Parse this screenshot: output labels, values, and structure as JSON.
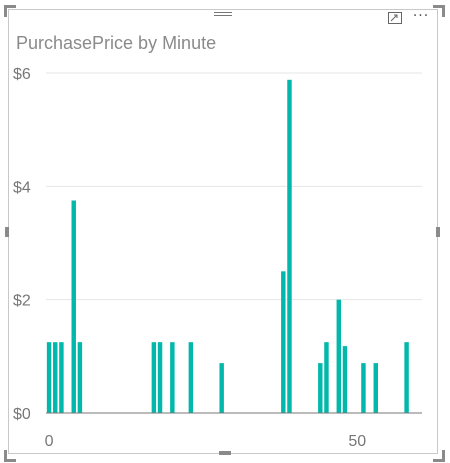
{
  "visual": {
    "title": "PurchasePrice by Minute",
    "icons": {
      "drag": "drag-handle-icon",
      "focus": "focus-mode-icon",
      "more": "more-options-icon"
    },
    "more_label": "···"
  },
  "chart_data": {
    "type": "bar",
    "title": "PurchasePrice by Minute",
    "xlabel": "",
    "ylabel": "",
    "x": [
      0,
      1,
      2,
      4,
      5,
      17,
      18,
      20,
      23,
      28,
      38,
      39,
      44,
      45,
      47,
      48,
      51,
      53,
      58
    ],
    "values": [
      1.25,
      1.25,
      1.25,
      3.75,
      1.25,
      1.25,
      1.25,
      1.25,
      1.25,
      0.88,
      2.5,
      5.88,
      0.88,
      1.25,
      2.0,
      1.18,
      0.88,
      0.88,
      1.25
    ],
    "xlim": [
      -0.5,
      60.5
    ],
    "ylim": [
      0,
      6.5
    ],
    "x_ticks": [
      0,
      50
    ],
    "x_tick_labels": [
      "0",
      "50"
    ],
    "y_ticks": [
      0,
      2,
      4,
      6
    ],
    "y_tick_labels": [
      "$0",
      "$2",
      "$4",
      "$6"
    ],
    "grid": true,
    "colors": {
      "bar": "#01B8AA",
      "grid": "#e6e6e6",
      "axis": "#777777"
    }
  }
}
